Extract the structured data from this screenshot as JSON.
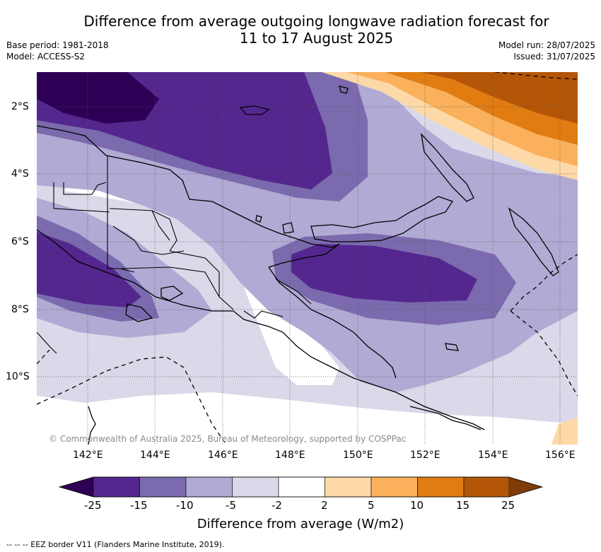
{
  "title_line1": "Difference from average outgoing longwave radiation forecast for",
  "title_line2": "11 to 17 August 2025",
  "meta": {
    "base_period": "Base period: 1981-2018",
    "model": "Model: ACCESS-S2",
    "model_run": "Model run: 28/07/2025",
    "issued": "Issued: 31/07/2025"
  },
  "map": {
    "lat_ticks": [
      "2°S",
      "4°S",
      "6°S",
      "8°S",
      "10°S"
    ],
    "lon_ticks": [
      "142°E",
      "144°E",
      "146°E",
      "148°E",
      "150°E",
      "152°E",
      "154°E",
      "156°E"
    ],
    "copyright": "© Commonwealth of Australia 2025, Bureau of Meteorology, supported by COSPPac",
    "lon_range": [
      140.5,
      156.5
    ],
    "lat_range": [
      -12.0,
      -1.0
    ]
  },
  "colorbar": {
    "labels": [
      "-25",
      "-15",
      "-10",
      "-5",
      "-2",
      "2",
      "5",
      "10",
      "15",
      "25"
    ],
    "colors": [
      "#2d0055",
      "#54278f",
      "#7b6aad",
      "#b0aad4",
      "#d9d9ea",
      "#ffffff",
      "#fdd9a8",
      "#fbb05b",
      "#e07c12",
      "#b35607",
      "#7f3b08"
    ],
    "title": "Difference from average (W/m2)"
  },
  "legend_note": "--  --  -- EEZ border V11 (Flanders Marine Institute, 2019)."
}
